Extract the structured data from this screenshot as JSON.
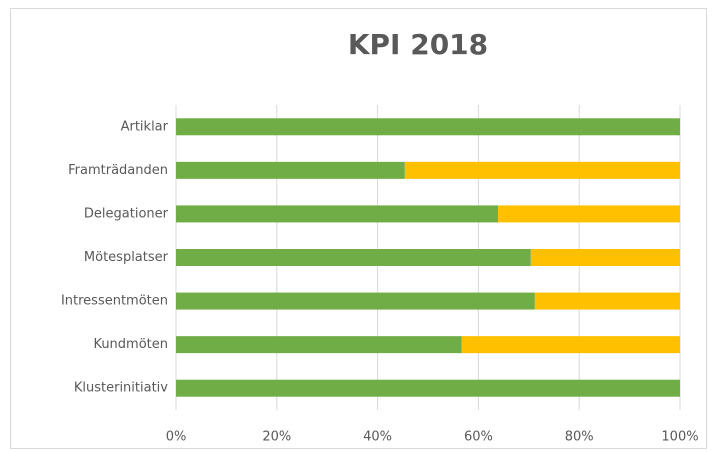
{
  "chart_data": {
    "type": "stacked-barh",
    "title": "KPI 2018",
    "categories": [
      "Artiklar",
      "Framträdanden",
      "Delegationer",
      "Mötesplatser",
      "Intressentmöten",
      "Kundmöten",
      "Klusterinitiativ"
    ],
    "series": [
      {
        "color": "#70ad47",
        "values": [
          100,
          45.4,
          63.9,
          70.4,
          71.2,
          56.7,
          100
        ]
      },
      {
        "color": "#ffc000",
        "values": [
          0,
          54.6,
          36.1,
          29.6,
          28.8,
          43.3,
          0
        ]
      }
    ],
    "xlim": [
      0,
      100
    ],
    "xticks": [
      {
        "value": 0,
        "label": "0%"
      },
      {
        "value": 20,
        "label": "20%"
      },
      {
        "value": 40,
        "label": "40%"
      },
      {
        "value": 60,
        "label": "60%"
      },
      {
        "value": 80,
        "label": "80%"
      },
      {
        "value": 100,
        "label": "100%"
      }
    ],
    "grid": true
  }
}
